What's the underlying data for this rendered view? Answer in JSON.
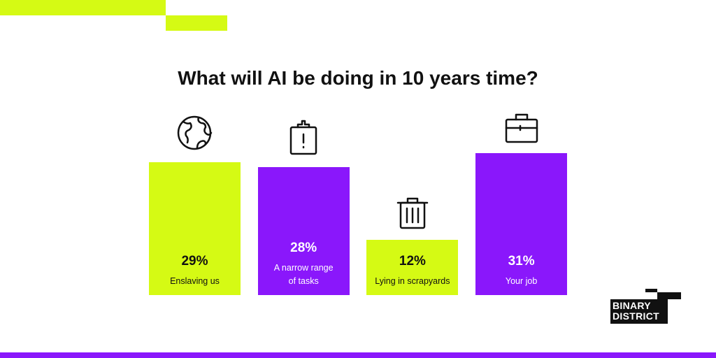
{
  "chart_data": {
    "type": "bar",
    "title": "What will AI be doing in 10 years time?",
    "categories": [
      "Enslaving us",
      "A narrow range\nof tasks",
      "Lying in scrapyards",
      "Your job"
    ],
    "values": [
      29,
      28,
      12,
      31
    ],
    "value_labels": [
      "29%",
      "28%",
      "12%",
      "31%"
    ],
    "colors": [
      "#d5fa14",
      "#8a17fb",
      "#d5fa14",
      "#8a17fb"
    ]
  },
  "logo": [
    "BINARY",
    "DISTRICT"
  ]
}
